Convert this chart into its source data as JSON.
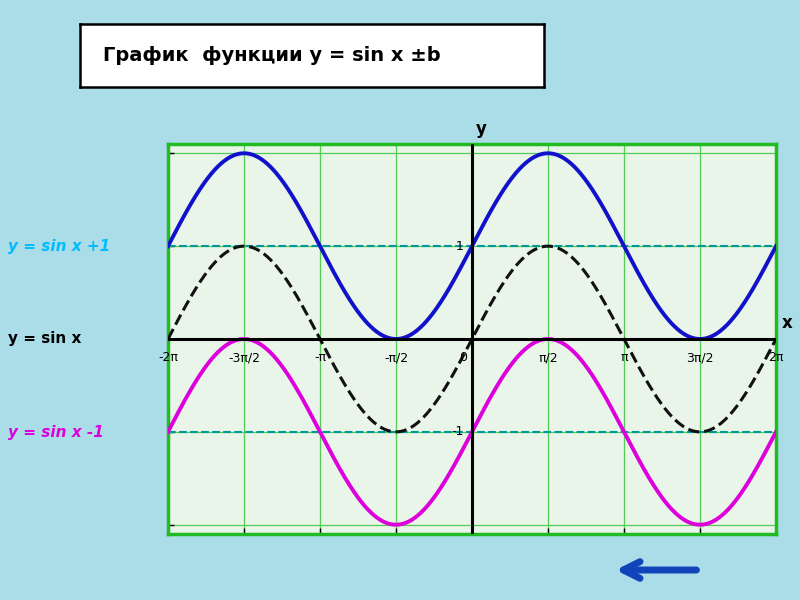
{
  "title": "График  функции y = sin x ±b",
  "bg_color": "#aadde8",
  "plot_bg_color": "#e8f5e8",
  "plot_border_color": "#22bb22",
  "x_min": -6.283185307179586,
  "x_max": 6.283185307179586,
  "y_min": -2.1,
  "y_max": 2.1,
  "grid_color": "#55cc55",
  "sin_x_color": "#111111",
  "sin_x_style": "--",
  "sin_x_linewidth": 2.2,
  "sin_x_plus1_color": "#1111cc",
  "sin_x_plus1_linewidth": 2.8,
  "sin_x_minus1_color": "#dd00dd",
  "sin_x_minus1_linewidth": 2.8,
  "label_sin_x": "y = sin x",
  "label_sin_x_plus1": "y = sin x +1",
  "label_sin_x_minus1": "y = sin x -1",
  "label_color_sin_x": "#000000",
  "label_color_plus1": "#00bbff",
  "label_color_minus1": "#dd00dd",
  "tick_labels": [
    "-2π",
    "-3π/2",
    "-π",
    "-π/2",
    "0",
    "π/2",
    "π",
    "3π/2",
    "2π"
  ],
  "tick_positions": [
    -6.283185307179586,
    -4.71238898038469,
    -3.141592653589793,
    -1.5707963267948966,
    0,
    1.5707963267948966,
    3.141592653589793,
    4.71238898038469,
    6.283185307179586
  ],
  "hline_color": "#009999",
  "hline_style": "--",
  "hline_linewidth": 1.5,
  "axis_color": "#000000",
  "axis_linewidth": 2.2
}
